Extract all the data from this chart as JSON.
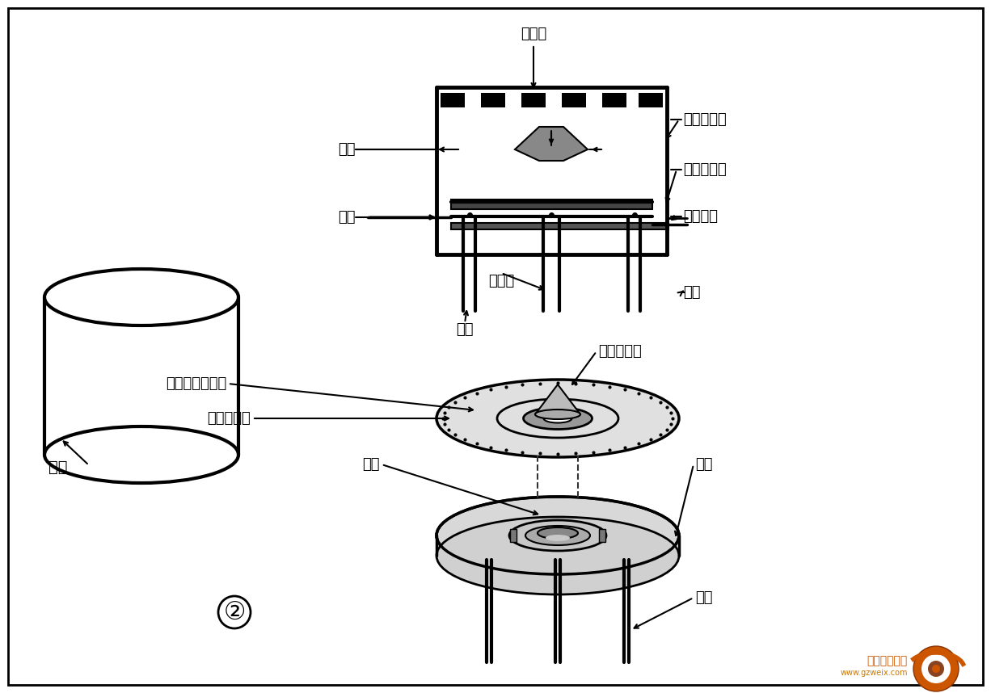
{
  "bg_color": "#ffffff",
  "line_color": "#000000",
  "labels": {
    "shield": "屏蔽棚",
    "outer_shell": "外壳",
    "lead_wire": "引线",
    "cone_vibrator_top": "圆锥形振子",
    "metal_plate_top": "金属振动板",
    "bimorph_top": "双晶体片",
    "adhesive": "粘接剂",
    "lead_pin_top": "引脚",
    "support_top": "支点",
    "square_bimorph": "正方形双晶体片",
    "cone_vibrator_bot": "圆锥形振子",
    "metal_plate_bot": "金属振动片",
    "lead_wire_bot": "引线",
    "support_bot": "支点",
    "lead_pin_bot": "引脚",
    "aluminum_shell": "铝壳",
    "circle_num": "②"
  },
  "watermark_text": "精通维修下载",
  "watermark_url": "www.gzweix.com"
}
